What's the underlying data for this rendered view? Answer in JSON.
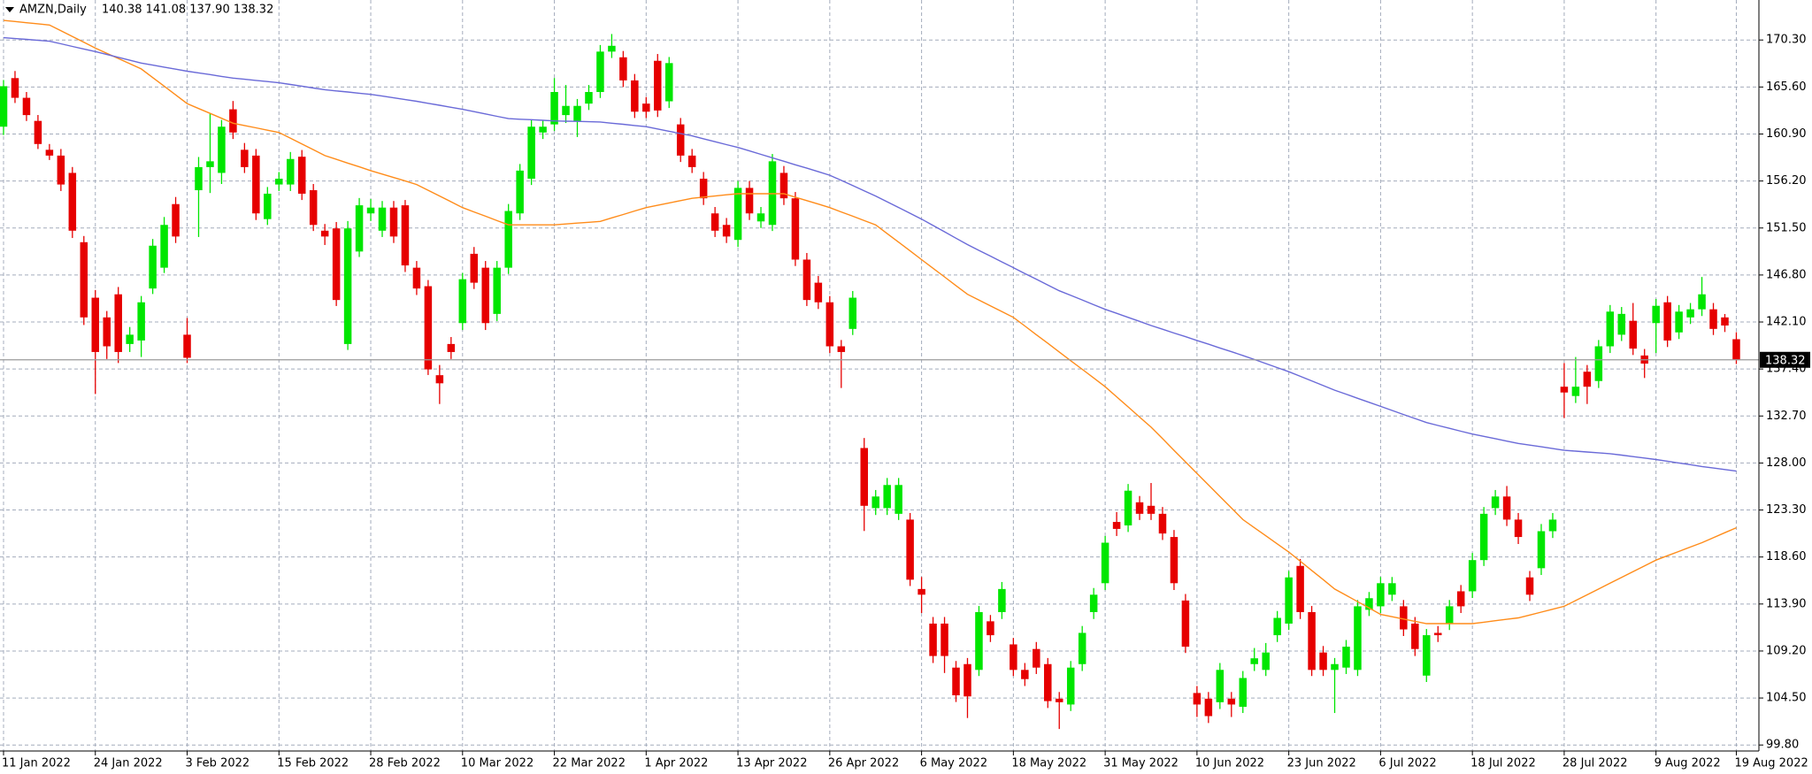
{
  "chart_data": {
    "type": "candlestick",
    "title": "AMZN,Daily",
    "subtitle": "140.38 141.08 137.90 138.32",
    "categories": [
      "11 Jan 2022",
      null,
      null,
      null,
      null,
      null,
      null,
      null,
      "24 Jan 2022",
      null,
      null,
      null,
      null,
      null,
      null,
      null,
      "3 Feb 2022",
      null,
      null,
      null,
      null,
      null,
      null,
      null,
      "15 Feb 2022",
      null,
      null,
      null,
      null,
      null,
      null,
      null,
      "28 Feb 2022",
      null,
      null,
      null,
      null,
      null,
      null,
      null,
      "10 Mar 2022",
      null,
      null,
      null,
      null,
      null,
      null,
      null,
      "22 Mar 2022",
      null,
      null,
      null,
      null,
      null,
      null,
      null,
      "1 Apr 2022",
      null,
      null,
      null,
      null,
      null,
      null,
      null,
      "13 Apr 2022",
      null,
      null,
      null,
      null,
      null,
      null,
      null,
      "26 Apr 2022",
      null,
      null,
      null,
      null,
      null,
      null,
      null,
      "6 May 2022",
      null,
      null,
      null,
      null,
      null,
      null,
      null,
      "18 May 2022",
      null,
      null,
      null,
      null,
      null,
      null,
      null,
      "31 May 2022",
      null,
      null,
      null,
      null,
      null,
      null,
      null,
      "10 Jun 2022",
      null,
      null,
      null,
      null,
      null,
      null,
      null,
      "23 Jun 2022",
      null,
      null,
      null,
      null,
      null,
      null,
      null,
      "6 Jul 2022",
      null,
      null,
      null,
      null,
      null,
      null,
      null,
      "18 Jul 2022",
      null,
      null,
      null,
      null,
      null,
      null,
      null,
      "28 Jul 2022",
      null,
      null,
      null,
      null,
      null,
      null,
      null,
      "9 Aug 2022",
      null,
      null,
      null,
      null,
      null,
      null,
      "19 Aug 2022"
    ],
    "open": [
      161.63,
      166.49,
      164.52,
      162.21,
      159.32,
      158.74,
      157.01,
      150.08,
      144.53,
      142.56,
      144.87,
      139.9,
      140.25,
      145.45,
      147.53,
      153.89,
      140.83,
      155.28,
      157.59,
      157.01,
      163.37,
      159.32,
      158.74,
      152.39,
      155.85,
      155.85,
      158.63,
      155.28,
      151.23,
      151.46,
      139.9,
      149.15,
      152.96,
      151.23,
      153.54,
      153.77,
      147.53,
      145.68,
      136.78,
      139.9,
      141.99,
      148.92,
      147.53,
      142.91,
      147.53,
      152.96,
      156.43,
      161.05,
      161.86,
      162.79,
      162.21,
      163.94,
      165.1,
      169.14,
      168.57,
      166.26,
      163.94,
      168.22,
      164.17,
      161.86,
      158.74,
      156.43,
      152.96,
      151.81,
      150.31,
      155.51,
      152.16,
      151.81,
      157.01,
      154.47,
      148.34,
      146.03,
      144.07,
      139.67,
      141.41,
      129.5,
      123.49,
      123.49,
      122.92,
      122.34,
      115.4,
      111.94,
      111.94,
      107.54,
      107.89,
      107.31,
      112.17,
      113.09,
      109.86,
      107.31,
      109.4,
      107.89,
      104.43,
      103.85,
      107.89,
      113.09,
      115.98,
      122.11,
      121.76,
      124.07,
      123.72,
      122.92,
      120.6,
      114.25,
      105.0,
      104.43,
      104.08,
      104.43,
      103.62,
      107.89,
      107.31,
      110.78,
      111.94,
      117.71,
      113.09,
      109.05,
      107.31,
      107.54,
      107.31,
      113.32,
      113.67,
      114.83,
      113.67,
      111.94,
      106.74,
      111.01,
      111.94,
      115.17,
      115.17,
      118.29,
      123.49,
      124.65,
      122.34,
      116.56,
      117.48,
      121.18,
      135.63,
      134.7,
      137.13,
      136.2,
      139.67,
      140.83,
      142.22,
      138.75,
      141.99,
      144.07,
      141.06,
      142.56,
      143.37,
      143.37,
      142.56,
      140.38
    ],
    "high": [
      166.3,
      167.2,
      165.1,
      162.8,
      159.9,
      159.4,
      157.6,
      150.7,
      145.3,
      143.2,
      145.6,
      141.6,
      144.7,
      150.4,
      152.6,
      154.6,
      142.5,
      158.6,
      163.0,
      162.3,
      164.2,
      160.0,
      159.4,
      155.6,
      157.1,
      159.1,
      159.3,
      155.9,
      151.9,
      152.1,
      152.2,
      154.5,
      154.4,
      154.2,
      154.2,
      154.3,
      148.2,
      146.3,
      137.8,
      140.6,
      147.0,
      149.6,
      148.2,
      148.2,
      153.9,
      157.9,
      162.3,
      162.3,
      166.5,
      165.8,
      164.4,
      165.8,
      169.8,
      170.9,
      169.2,
      166.9,
      164.6,
      168.9,
      168.6,
      162.5,
      159.4,
      157.1,
      153.6,
      152.5,
      156.2,
      156.2,
      153.6,
      158.9,
      157.7,
      155.1,
      149.0,
      146.7,
      144.7,
      140.3,
      145.2,
      130.5,
      125.3,
      126.5,
      126.5,
      123.0,
      116.6,
      112.6,
      112.6,
      108.2,
      108.5,
      113.7,
      112.8,
      116.1,
      110.5,
      108.0,
      110.1,
      108.5,
      105.1,
      108.2,
      111.7,
      115.5,
      120.7,
      123.1,
      125.9,
      124.7,
      126.0,
      123.6,
      121.3,
      114.9,
      105.7,
      105.1,
      108.0,
      105.1,
      107.2,
      109.5,
      110.0,
      113.2,
      117.2,
      118.4,
      113.7,
      109.7,
      108.5,
      110.3,
      114.3,
      115.1,
      116.6,
      116.6,
      114.3,
      112.6,
      111.4,
      111.7,
      114.3,
      115.8,
      119.0,
      123.6,
      125.3,
      125.7,
      123.0,
      117.2,
      121.9,
      123.0,
      138.0,
      138.6,
      137.8,
      140.3,
      143.8,
      143.6,
      144.0,
      139.4,
      144.4,
      144.7,
      143.8,
      144.0,
      146.6,
      144.0,
      142.9,
      141.08
    ],
    "low": [
      160.8,
      164.0,
      162.2,
      159.4,
      158.3,
      155.2,
      150.5,
      141.8,
      134.9,
      138.4,
      138.0,
      139.1,
      138.6,
      144.9,
      147.0,
      150.0,
      138.0,
      150.6,
      155.0,
      155.9,
      160.4,
      157.0,
      152.3,
      151.8,
      155.2,
      155.2,
      154.3,
      151.2,
      149.8,
      143.7,
      139.3,
      148.6,
      152.2,
      150.6,
      150.0,
      147.1,
      144.8,
      136.8,
      133.9,
      138.4,
      141.3,
      145.4,
      141.3,
      142.2,
      146.9,
      152.3,
      155.8,
      160.4,
      161.2,
      162.0,
      160.6,
      163.3,
      164.5,
      168.5,
      165.6,
      162.5,
      162.5,
      162.6,
      163.5,
      158.1,
      157.0,
      153.8,
      150.6,
      150.0,
      149.6,
      152.3,
      151.5,
      151.2,
      153.8,
      147.7,
      143.7,
      143.4,
      139.0,
      135.5,
      140.8,
      121.2,
      122.8,
      122.8,
      122.3,
      115.7,
      113.0,
      108.0,
      107.0,
      104.1,
      102.5,
      106.7,
      110.1,
      112.4,
      106.7,
      105.7,
      106.9,
      103.5,
      101.4,
      103.2,
      107.2,
      112.4,
      115.3,
      120.7,
      121.1,
      122.3,
      122.3,
      120.3,
      115.3,
      109.0,
      102.6,
      102.0,
      103.4,
      102.6,
      103.0,
      107.2,
      106.7,
      110.1,
      111.3,
      112.4,
      106.7,
      106.7,
      103.0,
      106.9,
      106.7,
      112.7,
      113.0,
      114.2,
      110.7,
      108.7,
      106.1,
      110.1,
      111.3,
      113.0,
      114.5,
      117.7,
      122.8,
      121.7,
      119.9,
      114.2,
      116.8,
      120.5,
      132.5,
      134.0,
      133.9,
      135.5,
      139.0,
      140.2,
      138.8,
      136.5,
      139.0,
      139.6,
      140.4,
      141.9,
      142.7,
      140.8,
      141.1,
      137.9
    ],
    "close": [
      165.68,
      164.52,
      162.79,
      159.9,
      158.74,
      155.85,
      151.23,
      142.56,
      139.1,
      139.67,
      139.1,
      140.83,
      144.07,
      149.73,
      151.81,
      150.65,
      138.52,
      157.59,
      158.17,
      161.63,
      161.05,
      157.59,
      152.96,
      154.93,
      156.43,
      158.4,
      154.93,
      151.81,
      150.65,
      144.3,
      151.46,
      153.77,
      153.54,
      153.54,
      150.65,
      147.76,
      145.45,
      137.36,
      135.97,
      139.1,
      146.38,
      146.03,
      141.99,
      147.53,
      153.2,
      157.24,
      161.63,
      161.63,
      165.1,
      163.71,
      163.71,
      165.1,
      169.14,
      169.72,
      166.26,
      163.13,
      163.13,
      163.25,
      167.99,
      158.74,
      157.59,
      154.47,
      151.23,
      150.65,
      155.51,
      152.96,
      152.96,
      158.17,
      154.47,
      148.34,
      144.3,
      144.07,
      139.67,
      139.1,
      144.53,
      123.72,
      124.65,
      125.8,
      125.8,
      116.33,
      114.83,
      108.7,
      108.7,
      104.77,
      104.66,
      113.09,
      110.78,
      115.4,
      107.31,
      106.39,
      107.54,
      104.19,
      104.08,
      107.54,
      111.01,
      114.83,
      120.03,
      121.41,
      125.23,
      122.92,
      122.92,
      120.95,
      115.98,
      109.63,
      103.85,
      102.69,
      107.31,
      103.85,
      106.5,
      108.47,
      109.05,
      112.51,
      116.56,
      113.09,
      107.31,
      107.31,
      107.89,
      109.63,
      113.67,
      114.48,
      115.98,
      115.98,
      111.36,
      109.4,
      110.78,
      110.78,
      113.67,
      113.67,
      118.29,
      122.92,
      124.65,
      122.34,
      120.6,
      114.83,
      121.18,
      122.34,
      135.05,
      135.63,
      135.63,
      139.67,
      143.14,
      142.91,
      139.44,
      137.94,
      143.72,
      140.25,
      143.14,
      143.37,
      144.87,
      141.41,
      141.75,
      138.32
    ],
    "series": [
      {
        "color": "#ff8c1a",
        "values": [
          172.26,
          172.15,
          172.03,
          171.92,
          171.8,
          171.22,
          170.65,
          170.07,
          169.49,
          168.97,
          168.45,
          167.93,
          167.41,
          166.54,
          165.68,
          164.81,
          163.94,
          163.45,
          162.96,
          162.47,
          161.98,
          161.75,
          161.52,
          161.28,
          161.05,
          160.47,
          159.9,
          159.32,
          158.74,
          158.37,
          157.99,
          157.62,
          157.24,
          156.89,
          156.55,
          156.2,
          155.85,
          155.27,
          154.7,
          154.12,
          153.54,
          153.11,
          152.68,
          152.24,
          151.81,
          151.81,
          151.81,
          151.81,
          151.81,
          151.9,
          151.99,
          152.07,
          152.16,
          152.51,
          152.85,
          153.2,
          153.54,
          153.77,
          154.01,
          154.24,
          154.47,
          154.59,
          154.7,
          154.82,
          154.93,
          154.93,
          154.93,
          154.93,
          154.93,
          154.58,
          154.24,
          153.89,
          153.54,
          153.11,
          152.68,
          152.24,
          151.81,
          150.94,
          150.08,
          149.21,
          148.34,
          147.47,
          146.61,
          145.74,
          144.87,
          144.29,
          143.72,
          143.14,
          142.56,
          141.7,
          140.83,
          139.97,
          139.1,
          138.23,
          137.37,
          136.5,
          135.63,
          134.62,
          133.61,
          132.59,
          131.58,
          130.43,
          129.27,
          128.12,
          126.96,
          125.81,
          124.65,
          123.5,
          122.34,
          121.53,
          120.72,
          119.91,
          119.1,
          118.18,
          117.25,
          116.33,
          115.4,
          114.77,
          114.13,
          113.5,
          112.86,
          112.63,
          112.4,
          112.17,
          111.94,
          111.94,
          111.94,
          111.94,
          111.94,
          112.08,
          112.23,
          112.37,
          112.51,
          112.8,
          113.09,
          113.38,
          113.67,
          114.25,
          114.82,
          115.4,
          115.98,
          116.56,
          117.14,
          117.71,
          118.29,
          118.73,
          119.16,
          119.6,
          120.03,
          120.53,
          121.03,
          121.53
        ]
      },
      {
        "color": "#6a6ad8",
        "values": [
          170.53,
          170.44,
          170.36,
          170.27,
          170.18,
          169.92,
          169.66,
          169.4,
          169.14,
          168.85,
          168.57,
          168.28,
          167.99,
          167.79,
          167.59,
          167.38,
          167.18,
          167.01,
          166.84,
          166.66,
          166.49,
          166.37,
          166.26,
          166.14,
          166.02,
          165.85,
          165.68,
          165.5,
          165.33,
          165.21,
          165.1,
          164.98,
          164.86,
          164.69,
          164.52,
          164.34,
          164.17,
          163.97,
          163.77,
          163.57,
          163.37,
          163.14,
          162.91,
          162.67,
          162.44,
          162.38,
          162.33,
          162.27,
          162.21,
          162.18,
          162.16,
          162.13,
          162.1,
          161.98,
          161.87,
          161.75,
          161.63,
          161.4,
          161.17,
          160.94,
          160.71,
          160.42,
          160.13,
          159.84,
          159.55,
          159.21,
          158.86,
          158.52,
          158.17,
          157.82,
          157.48,
          157.13,
          156.78,
          156.26,
          155.74,
          155.22,
          154.7,
          154.12,
          153.55,
          152.97,
          152.39,
          151.75,
          151.12,
          150.48,
          149.84,
          149.26,
          148.69,
          148.11,
          147.53,
          146.95,
          146.38,
          145.8,
          145.22,
          144.76,
          144.3,
          143.83,
          143.37,
          142.97,
          142.56,
          142.16,
          141.75,
          141.38,
          141.0,
          140.63,
          140.25,
          139.88,
          139.5,
          139.13,
          138.75,
          138.35,
          137.94,
          137.54,
          137.13,
          136.67,
          136.21,
          135.74,
          135.28,
          134.88,
          134.47,
          134.07,
          133.66,
          133.26,
          132.85,
          132.45,
          132.04,
          131.75,
          131.47,
          131.18,
          130.89,
          130.66,
          130.43,
          130.19,
          129.96,
          129.79,
          129.62,
          129.44,
          129.27,
          129.19,
          129.1,
          129.02,
          128.93,
          128.79,
          128.64,
          128.5,
          128.35,
          128.18,
          128.0,
          127.83,
          127.65,
          127.5,
          127.35,
          127.19
        ]
      }
    ],
    "up_color": "#00e600",
    "down_color": "#e60000",
    "price_line_color": "#9a9a9a",
    "ylim": [
      99.2,
      174.3
    ],
    "yticks": [
      {
        "value": 99.8,
        "label": "99.80"
      },
      {
        "value": 104.5,
        "label": "104.50"
      },
      {
        "value": 109.2,
        "label": "109.20"
      },
      {
        "value": 113.9,
        "label": "113.90"
      },
      {
        "value": 118.6,
        "label": "118.60"
      },
      {
        "value": 123.3,
        "label": "123.30"
      },
      {
        "value": 128.0,
        "label": "128.00"
      },
      {
        "value": 132.7,
        "label": "132.70"
      },
      {
        "value": 137.4,
        "label": "137.40"
      },
      {
        "value": 142.1,
        "label": "142.10"
      },
      {
        "value": 146.8,
        "label": "146.80"
      },
      {
        "value": 151.5,
        "label": "151.50"
      },
      {
        "value": 156.2,
        "label": "156.20"
      },
      {
        "value": 160.9,
        "label": "160.90"
      },
      {
        "value": 165.6,
        "label": "165.60"
      },
      {
        "value": 170.3,
        "label": "170.30"
      }
    ],
    "grid": true
  }
}
